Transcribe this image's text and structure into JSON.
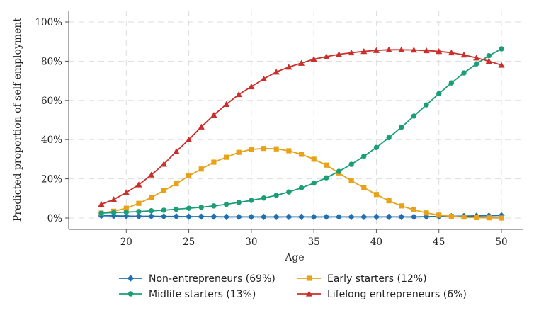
{
  "chart_data": {
    "type": "line",
    "xlabel": "Age",
    "ylabel": "Predicted proportion of self-employment",
    "xlim": [
      18,
      50
    ],
    "ylim": [
      0,
      100
    ],
    "x_ticks": [
      20,
      25,
      30,
      35,
      40,
      45,
      50
    ],
    "y_ticks": [
      0,
      20,
      40,
      60,
      80,
      100
    ],
    "y_tick_labels": [
      "0%",
      "20%",
      "40%",
      "60%",
      "80%",
      "100%"
    ],
    "x_tick_labels": [
      "20",
      "25",
      "30",
      "35",
      "40",
      "45",
      "50"
    ],
    "grid": true,
    "legend_position": "bottom",
    "x": [
      18,
      19,
      20,
      21,
      22,
      23,
      24,
      25,
      26,
      27,
      28,
      29,
      30,
      31,
      32,
      33,
      34,
      35,
      36,
      37,
      38,
      39,
      40,
      41,
      42,
      43,
      44,
      45,
      46,
      47,
      48,
      49,
      50
    ],
    "series": [
      {
        "name": "Non-entrepreneurs (69%)",
        "color": "#1f6fb2",
        "marker": "diamond",
        "values": [
          1.2,
          1.1,
          1.0,
          0.9,
          0.9,
          0.8,
          0.8,
          0.7,
          0.7,
          0.7,
          0.6,
          0.6,
          0.6,
          0.6,
          0.6,
          0.6,
          0.6,
          0.6,
          0.6,
          0.6,
          0.6,
          0.6,
          0.6,
          0.6,
          0.6,
          0.6,
          0.7,
          0.8,
          0.9,
          1.0,
          1.1,
          1.2,
          1.3
        ]
      },
      {
        "name": "Early starters (12%)",
        "color": "#e8a21a",
        "marker": "square",
        "values": [
          2.5,
          3.5,
          5.0,
          7.5,
          10.5,
          14.0,
          17.5,
          21.5,
          25.0,
          28.5,
          31.0,
          33.5,
          35.0,
          35.5,
          35.3,
          34.3,
          32.5,
          30.0,
          27.0,
          23.0,
          19.0,
          15.5,
          12.0,
          8.8,
          6.2,
          4.2,
          2.6,
          1.5,
          0.9,
          0.5,
          0.2,
          0.1,
          0.0
        ]
      },
      {
        "name": "Midlife starters (13%)",
        "color": "#1b9e77",
        "marker": "circle",
        "values": [
          2.5,
          2.8,
          3.0,
          3.3,
          3.7,
          4.0,
          4.5,
          5.0,
          5.5,
          6.2,
          7.0,
          8.0,
          9.0,
          10.2,
          11.6,
          13.3,
          15.4,
          17.8,
          20.5,
          23.8,
          27.4,
          31.5,
          36.0,
          41.0,
          46.3,
          52.0,
          57.7,
          63.4,
          68.9,
          74.0,
          78.6,
          82.8,
          86.3
        ]
      },
      {
        "name": "Lifelong entrepreneurs (6%)",
        "color": "#c9302c",
        "marker": "triangle",
        "values": [
          7.0,
          9.5,
          13.0,
          17.0,
          22.0,
          27.5,
          34.0,
          40.0,
          46.5,
          52.5,
          58.0,
          63.0,
          67.0,
          71.0,
          74.5,
          77.0,
          79.0,
          81.0,
          82.3,
          83.5,
          84.3,
          85.0,
          85.5,
          85.8,
          85.8,
          85.7,
          85.4,
          85.0,
          84.3,
          83.2,
          81.7,
          80.0,
          78.0
        ]
      }
    ]
  }
}
